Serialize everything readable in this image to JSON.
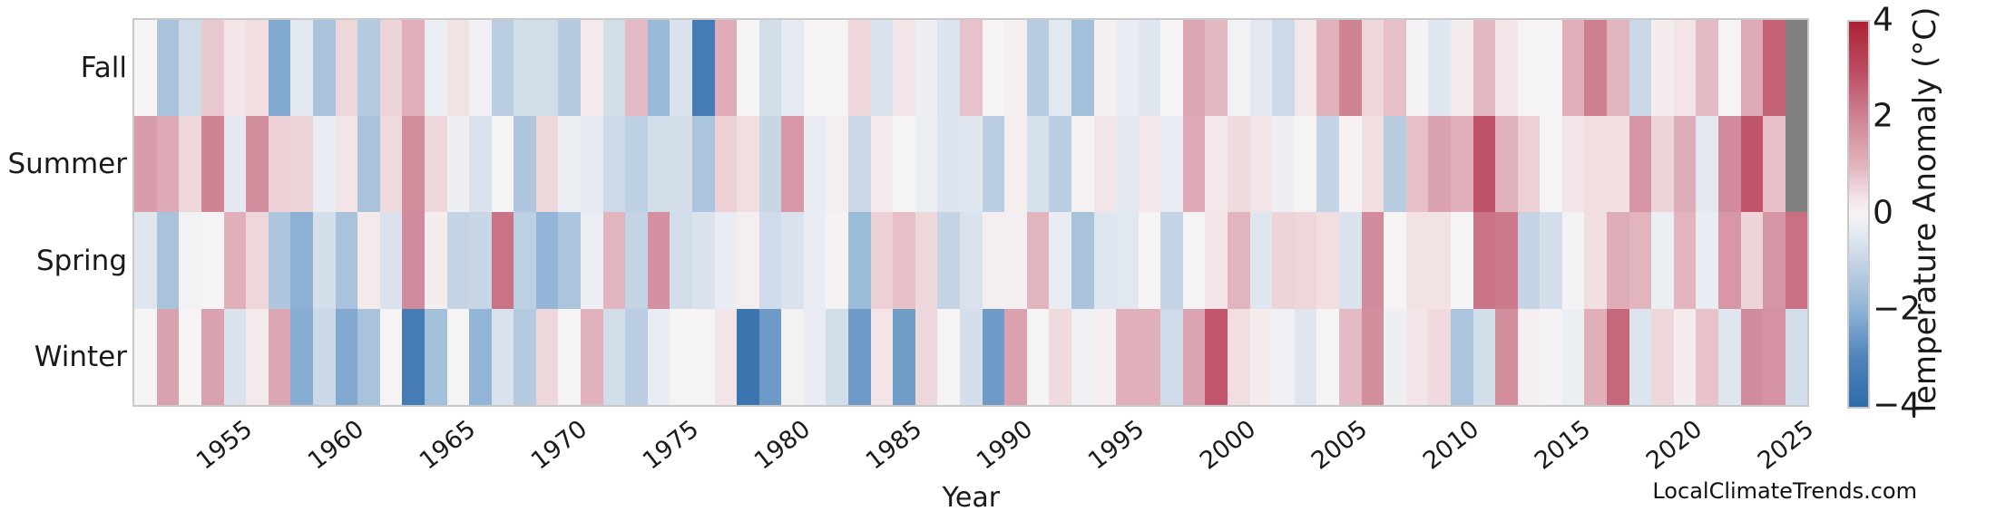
{
  "watermark": "LocalClimateTrends.com",
  "chart_data": {
    "type": "heatmap",
    "title": "",
    "xlabel": "Year",
    "ylabel": "",
    "rows": [
      "Fall",
      "Summer",
      "Spring",
      "Winter"
    ],
    "years": [
      1951,
      1952,
      1953,
      1954,
      1955,
      1956,
      1957,
      1958,
      1959,
      1960,
      1961,
      1962,
      1963,
      1964,
      1965,
      1966,
      1967,
      1968,
      1969,
      1970,
      1971,
      1972,
      1973,
      1974,
      1975,
      1976,
      1977,
      1978,
      1979,
      1980,
      1981,
      1982,
      1983,
      1984,
      1985,
      1986,
      1987,
      1988,
      1989,
      1990,
      1991,
      1992,
      1993,
      1994,
      1995,
      1996,
      1997,
      1998,
      1999,
      2000,
      2001,
      2002,
      2003,
      2004,
      2005,
      2006,
      2007,
      2008,
      2009,
      2010,
      2011,
      2012,
      2013,
      2014,
      2015,
      2016,
      2017,
      2018,
      2019,
      2020,
      2021,
      2022,
      2023,
      2024,
      2025
    ],
    "x_tick_labels": [
      "1955",
      "1960",
      "1965",
      "1970",
      "1975",
      "1980",
      "1985",
      "1990",
      "1995",
      "2000",
      "2005",
      "2010",
      "2015",
      "2020",
      "2025"
    ],
    "series": [
      {
        "name": "Fall",
        "values": [
          0,
          -1.5,
          -0.8,
          0.7,
          0.3,
          0.4,
          -2.2,
          -0.4,
          -1.5,
          0.5,
          -1.3,
          0.55,
          1.1,
          -0.25,
          0.35,
          -0.15,
          -1.2,
          -0.75,
          -0.75,
          -1.3,
          0.2,
          -0.75,
          0.9,
          -1.8,
          -0.6,
          -3.3,
          1.15,
          0,
          -0.75,
          -0.35,
          0,
          0,
          0.5,
          -0.6,
          0.3,
          -0.2,
          -0.55,
          0.8,
          0,
          0.1,
          -1.25,
          -0.45,
          -1.6,
          0.1,
          -0.3,
          -0.5,
          0,
          1.3,
          0.95,
          -0.1,
          -0.4,
          -0.85,
          0.25,
          1.05,
          2.0,
          0.5,
          0.85,
          -0.05,
          -0.5,
          0.15,
          0.95,
          0.3,
          0,
          0,
          1.1,
          2.1,
          1.0,
          -0.9,
          0.15,
          0.3,
          0.9,
          0,
          1.2,
          2.6,
          null
        ]
      },
      {
        "name": "Summer",
        "values": [
          1.5,
          1.2,
          0.5,
          2.0,
          -0.4,
          1.8,
          0.6,
          0.55,
          -0.3,
          0.3,
          -1.5,
          0.45,
          1.8,
          0.5,
          -0.2,
          -0.6,
          0,
          -1.4,
          0.5,
          -0.25,
          -0.35,
          -0.85,
          -1.15,
          -0.75,
          -0.7,
          -1.45,
          0.6,
          0.4,
          -0.95,
          1.6,
          -0.3,
          0.1,
          -0.9,
          0.2,
          0,
          -0.25,
          -0.55,
          -0.5,
          -1.2,
          0.1,
          -0.65,
          -1.2,
          0.05,
          0.3,
          -0.4,
          0.25,
          -0.3,
          1.2,
          0.25,
          0.45,
          0.3,
          -0.2,
          0,
          -1.0,
          0.05,
          0.4,
          -1.25,
          0.85,
          1.4,
          1.1,
          2.9,
          1.05,
          0.6,
          0,
          0.3,
          0.4,
          0.4,
          1.65,
          0.55,
          1.15,
          -0.4,
          1.85,
          2.85,
          0.85,
          null
        ]
      },
      {
        "name": "Spring",
        "values": [
          -0.5,
          -1.5,
          -0.1,
          0,
          1.1,
          0.5,
          -1.4,
          -2.0,
          -0.7,
          -1.5,
          0.2,
          -0.6,
          1.85,
          0.15,
          -1.0,
          -0.95,
          2.3,
          -1.15,
          -1.9,
          -1.45,
          -0.25,
          1.0,
          -1.0,
          1.75,
          -0.75,
          -0.6,
          -0.3,
          0.1,
          -0.8,
          -0.6,
          -0.3,
          0.05,
          -1.75,
          0.6,
          0.85,
          0.5,
          -1.0,
          -0.6,
          0.1,
          0.1,
          1.0,
          -0.3,
          -1.5,
          -0.5,
          -0.45,
          0,
          -1.0,
          0,
          0.3,
          1.0,
          -0.5,
          0.55,
          0.5,
          0.4,
          -0.6,
          1.85,
          0,
          0.35,
          0.35,
          0,
          2.3,
          2.2,
          -1.0,
          -0.7,
          -0.05,
          0.4,
          1.15,
          1.0,
          -0.25,
          1.0,
          -0.3,
          1.6,
          0.55,
          1.65,
          2.35
        ]
      },
      {
        "name": "Winter",
        "values": [
          0,
          1.4,
          0,
          1.4,
          -0.6,
          0.2,
          1.3,
          -2.1,
          -0.9,
          -2.2,
          -1.5,
          0,
          -3.3,
          -1.6,
          0,
          -1.9,
          -0.6,
          -1.3,
          0.5,
          0,
          1.05,
          -0.75,
          -1.2,
          -0.3,
          0,
          0,
          0.3,
          -3.6,
          -2.5,
          -0.1,
          -0.3,
          -0.75,
          -2.5,
          0.3,
          -2.45,
          0.5,
          0,
          -0.7,
          -2.5,
          1.4,
          0,
          0.45,
          -0.15,
          0.1,
          1.1,
          1.1,
          -0.8,
          1.35,
          2.8,
          0.4,
          0.15,
          -0.15,
          -0.5,
          0,
          0.9,
          1.8,
          -0.2,
          0.3,
          0.45,
          -1.45,
          -0.7,
          1.8,
          0.1,
          -0.05,
          -0.25,
          1.1,
          2.5,
          -0.55,
          0.5,
          0.15,
          0.8,
          -0.5,
          1.85,
          1.7,
          -0.75
        ]
      }
    ],
    "colorbar": {
      "label": "Temperature Anomaly (°C)",
      "tick_labels": [
        "4",
        "2",
        "0",
        "−2",
        "−4"
      ],
      "tick_values": [
        4,
        2,
        0,
        -2,
        -4
      ],
      "vmin": -4,
      "vmax": 4
    },
    "palette_stops": [
      {
        "value": -4,
        "color": "#2e6caa"
      },
      {
        "value": -3,
        "color": "#4f83ba"
      },
      {
        "value": -2,
        "color": "#8db2d5"
      },
      {
        "value": -1,
        "color": "#c5d4e5"
      },
      {
        "value": -0.3,
        "color": "#e9edf3"
      },
      {
        "value": 0,
        "color": "#f6f3f4"
      },
      {
        "value": 0.3,
        "color": "#f3e5e7"
      },
      {
        "value": 1,
        "color": "#e2b4be"
      },
      {
        "value": 2,
        "color": "#cf8496"
      },
      {
        "value": 3,
        "color": "#bd4b61"
      },
      {
        "value": 4,
        "color": "#ab2232"
      }
    ],
    "missing_value_color": "#808080",
    "legend_position": "right",
    "grid": false
  }
}
